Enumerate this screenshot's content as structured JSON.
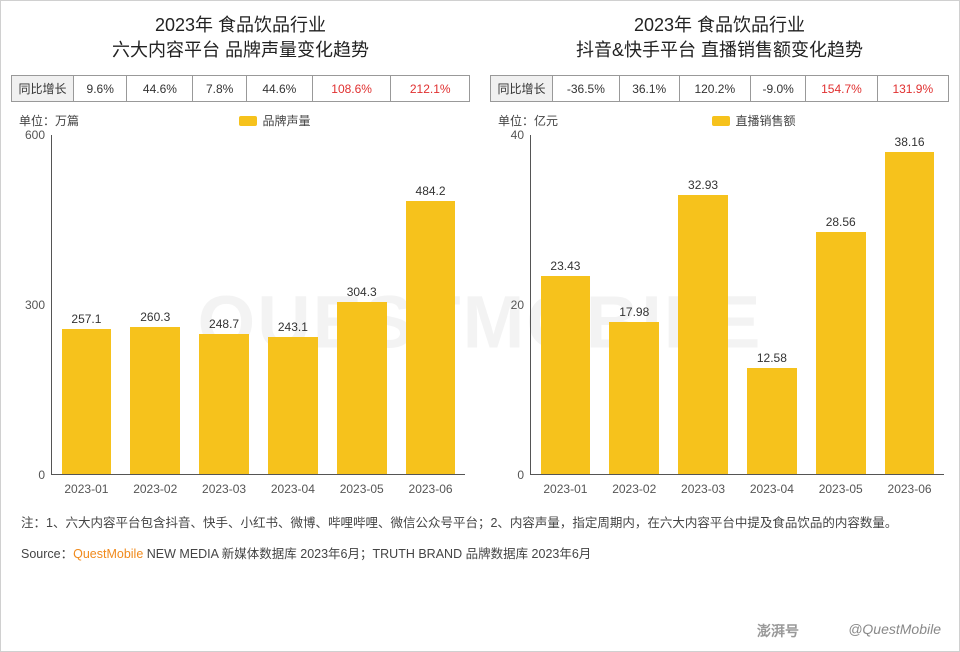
{
  "colors": {
    "bar_fill": "#f6c21c",
    "highlight_text": "#e03030",
    "axis": "#555555",
    "text": "#333333",
    "qm_orange": "#f08a1d"
  },
  "left": {
    "title": "2023年 食品饮品行业\n六大内容平台 品牌声量变化趋势",
    "growth_label": "同比增长",
    "growth": [
      {
        "v": "9.6%",
        "hl": false
      },
      {
        "v": "44.6%",
        "hl": false
      },
      {
        "v": "7.8%",
        "hl": false
      },
      {
        "v": "44.6%",
        "hl": false
      },
      {
        "v": "108.6%",
        "hl": true
      },
      {
        "v": "212.1%",
        "hl": true
      }
    ],
    "unit": "单位：万篇",
    "legend_label": "品牌声量",
    "ymax": 600,
    "yticks": [
      0,
      300,
      600
    ],
    "categories": [
      "2023-01",
      "2023-02",
      "2023-03",
      "2023-04",
      "2023-05",
      "2023-06"
    ],
    "values": [
      257.1,
      260.3,
      248.7,
      243.1,
      304.3,
      484.2
    ]
  },
  "right": {
    "title": "2023年 食品饮品行业\n抖音&快手平台 直播销售额变化趋势",
    "growth_label": "同比增长",
    "growth": [
      {
        "v": "-36.5%",
        "hl": false
      },
      {
        "v": "36.1%",
        "hl": false
      },
      {
        "v": "120.2%",
        "hl": false
      },
      {
        "v": "-9.0%",
        "hl": false
      },
      {
        "v": "154.7%",
        "hl": true
      },
      {
        "v": "131.9%",
        "hl": true
      }
    ],
    "unit": "单位：亿元",
    "legend_label": "直播销售额",
    "ymax": 40,
    "yticks": [
      0,
      20,
      40
    ],
    "categories": [
      "2023-01",
      "2023-02",
      "2023-03",
      "2023-04",
      "2023-05",
      "2023-06"
    ],
    "values": [
      23.43,
      17.98,
      32.93,
      12.58,
      28.56,
      38.16
    ]
  },
  "note": "注：1、六大内容平台包含抖音、快手、小红书、微博、哔哩哔哩、微信公众号平台；2、内容声量，指定周期内，在六大内容平台中提及食品饮品的内容数量。",
  "source_prefix": "Source：",
  "source_qm": "QuestMobile",
  "source_rest": " NEW MEDIA 新媒体数据库 2023年6月；TRUTH BRAND 品牌数据库 2023年6月",
  "watermark_bg": "QUESTMOBILE",
  "watermark_corner": "@QuestMobile",
  "watermark_badge": "澎湃号"
}
